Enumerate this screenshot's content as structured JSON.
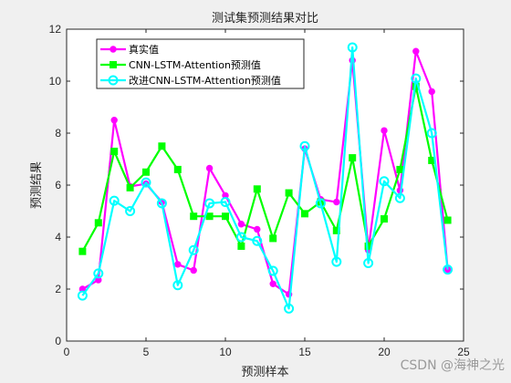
{
  "chart_data": {
    "type": "line",
    "title": "测试集预测结果对比",
    "xlabel": "预测样本",
    "ylabel": "预测结果",
    "xlim": [
      0,
      25
    ],
    "ylim": [
      0,
      12
    ],
    "xticks": [
      0,
      5,
      10,
      15,
      20,
      25
    ],
    "yticks": [
      0,
      2,
      4,
      6,
      8,
      10,
      12
    ],
    "grid": false,
    "legend_position": "top-left",
    "x": [
      1,
      2,
      3,
      4,
      5,
      6,
      7,
      8,
      9,
      10,
      11,
      12,
      13,
      14,
      15,
      16,
      17,
      18,
      19,
      20,
      21,
      22,
      23,
      24
    ],
    "series": [
      {
        "name": "真实值",
        "color": "#ff00ff",
        "marker": "circle-filled",
        "values": [
          2.0,
          2.35,
          8.5,
          5.95,
          6.05,
          5.35,
          2.95,
          2.72,
          6.65,
          5.6,
          4.5,
          4.3,
          2.2,
          1.8,
          7.4,
          5.45,
          5.35,
          10.8,
          3.5,
          8.1,
          5.8,
          11.15,
          9.6,
          2.75
        ]
      },
      {
        "name": "CNN-LSTM-Attention预测值",
        "color": "#00ff00",
        "marker": "square-filled",
        "values": [
          3.45,
          4.55,
          7.3,
          5.9,
          6.5,
          7.5,
          6.6,
          4.8,
          4.8,
          4.8,
          3.65,
          5.85,
          3.95,
          5.7,
          4.9,
          5.35,
          4.25,
          7.05,
          3.65,
          4.7,
          6.6,
          9.8,
          6.95,
          4.65
        ]
      },
      {
        "name": "改进CNN-LSTM-Attention预测值",
        "color": "#00ffff",
        "marker": "circle-open",
        "values": [
          1.75,
          2.6,
          5.4,
          5.0,
          6.1,
          5.3,
          2.15,
          3.5,
          5.3,
          5.35,
          4.0,
          3.85,
          2.7,
          1.25,
          7.5,
          5.3,
          3.05,
          11.3,
          3.0,
          6.15,
          5.5,
          10.1,
          8.0,
          2.75
        ]
      }
    ]
  },
  "watermark": "CSDN @海神之光"
}
